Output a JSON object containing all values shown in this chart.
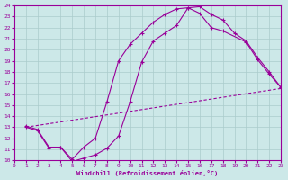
{
  "xlabel": "Windchill (Refroidissement éolien,°C)",
  "bg_color": "#cce8e8",
  "grid_color": "#aacccc",
  "line_color": "#990099",
  "xlim": [
    0,
    23
  ],
  "ylim": [
    10,
    24
  ],
  "xticks": [
    0,
    1,
    2,
    3,
    4,
    5,
    6,
    7,
    8,
    9,
    10,
    11,
    12,
    13,
    14,
    15,
    16,
    17,
    18,
    19,
    20,
    21,
    22,
    23
  ],
  "yticks": [
    10,
    11,
    12,
    13,
    14,
    15,
    16,
    17,
    18,
    19,
    20,
    21,
    22,
    23,
    24
  ],
  "line1_x": [
    1,
    2,
    3,
    4,
    5,
    6,
    7,
    8,
    9,
    10,
    11,
    12,
    13,
    14,
    15,
    16,
    17,
    18,
    19,
    20,
    21,
    22,
    23
  ],
  "line1_y": [
    13.0,
    12.7,
    11.1,
    11.2,
    9.9,
    10.2,
    10.5,
    11.1,
    12.2,
    15.3,
    18.9,
    20.8,
    21.5,
    22.2,
    23.8,
    23.9,
    23.2,
    22.7,
    21.5,
    20.8,
    19.3,
    18.0,
    16.6
  ],
  "line2_x": [
    1,
    2,
    3,
    4,
    5,
    6,
    7,
    8,
    9,
    10,
    11,
    12,
    13,
    14,
    15,
    16,
    17,
    18,
    20,
    21,
    22,
    23
  ],
  "line2_y": [
    13.1,
    12.8,
    11.2,
    11.2,
    10.1,
    11.2,
    12.0,
    15.3,
    19.0,
    20.5,
    21.5,
    22.5,
    23.2,
    23.7,
    23.8,
    23.3,
    22.0,
    21.7,
    20.7,
    19.1,
    17.8,
    16.6
  ],
  "line3_x": [
    1,
    23
  ],
  "line3_y": [
    13.0,
    16.5
  ]
}
